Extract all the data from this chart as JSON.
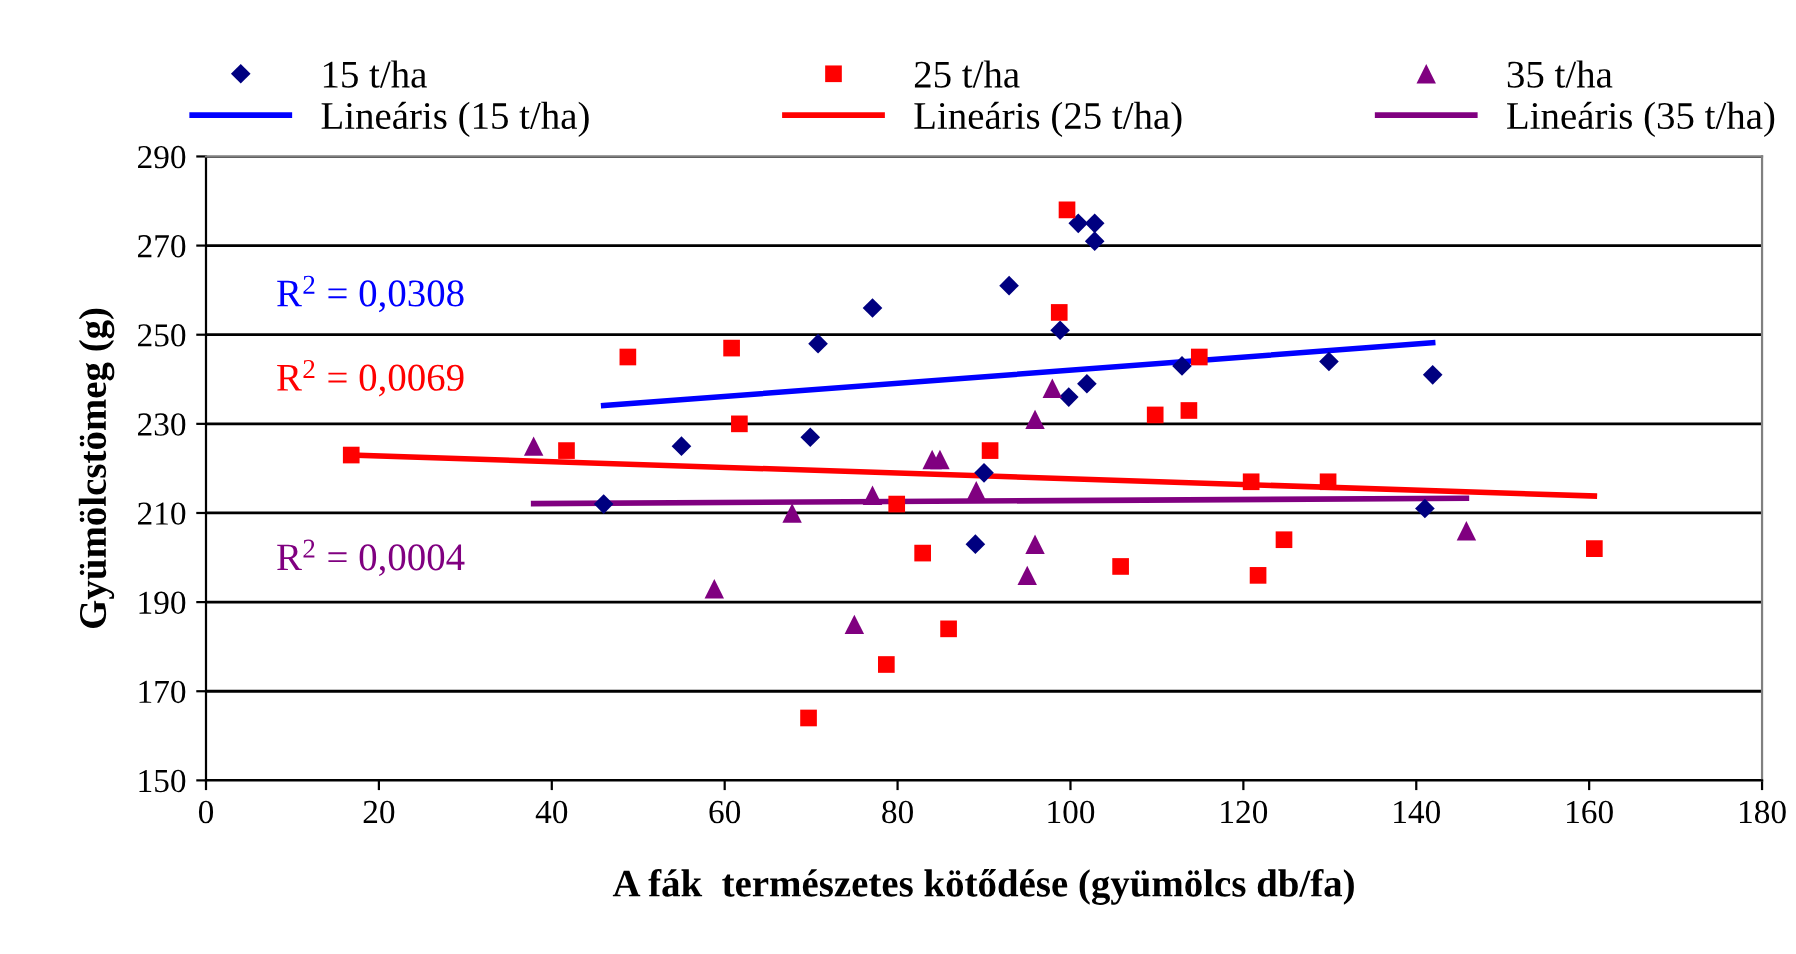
{
  "chart_data": {
    "type": "scatter",
    "xlabel": "A fák  természetes kötődése (gyümölcs db/fa)",
    "ylabel": "Gyümölcstömeg (g)",
    "xlim": [
      0,
      180
    ],
    "xticks": [
      0,
      20,
      40,
      60,
      80,
      100,
      120,
      140,
      160,
      180
    ],
    "ylim": [
      150,
      290
    ],
    "yticks": [
      150,
      170,
      190,
      210,
      230,
      250,
      270,
      290
    ],
    "grid": "y",
    "legend": "top",
    "series": [
      {
        "name": "15 t/ha",
        "marker": "diamond",
        "color": "#000080",
        "x": [
          46.0,
          55.0,
          69.9,
          70.8,
          77.1,
          89.0,
          90.0,
          92.9,
          98.8,
          99.8,
          100.9,
          101.9,
          102.8,
          102.8,
          112.9,
          129.9,
          141.0,
          141.9
        ],
        "values": [
          212,
          225,
          227,
          248,
          256,
          203,
          219,
          261,
          251,
          236,
          275,
          239,
          275,
          271,
          243,
          244,
          211,
          241
        ]
      },
      {
        "name": "25 t/ha",
        "marker": "square",
        "color": "#ff0000",
        "x": [
          16.8,
          41.7,
          48.8,
          60.8,
          61.7,
          69.7,
          78.7,
          79.9,
          82.9,
          85.9,
          90.7,
          98.7,
          99.6,
          105.8,
          109.8,
          113.7,
          114.9,
          120.9,
          121.7,
          124.7,
          129.8,
          160.6
        ],
        "values": [
          223,
          224,
          245,
          247,
          230,
          164,
          176,
          212,
          201,
          184,
          224,
          255,
          278,
          198,
          232,
          233,
          245,
          217,
          196,
          204,
          217,
          202
        ]
      },
      {
        "name": "35 t/ha",
        "marker": "triangle",
        "color": "#800080",
        "x": [
          37.9,
          58.8,
          67.8,
          75.0,
          77.1,
          84.0,
          84.9,
          89.1,
          95.0,
          95.9,
          95.9,
          97.9,
          145.8
        ],
        "values": [
          225,
          193,
          210,
          185,
          214,
          222,
          222,
          215,
          196,
          203,
          231,
          238,
          206
        ]
      },
      {
        "name": "Lineáris (15 t/ha)",
        "type": "line",
        "marker": "none",
        "color": "#0000ff",
        "x": [
          46.0,
          141.9
        ],
        "values": [
          234.1,
          248.2
        ]
      },
      {
        "name": "Lineáris (25 t/ha)",
        "type": "line",
        "marker": "none",
        "color": "#ff0000",
        "x": [
          16.8,
          160.6
        ],
        "values": [
          223.0,
          213.8
        ]
      },
      {
        "name": "Lineáris (35 t/ha)",
        "type": "line",
        "marker": "none",
        "color": "#800080",
        "x": [
          37.9,
          145.8
        ],
        "values": [
          212.1,
          213.3
        ]
      }
    ],
    "annotations": [
      "R$^{2}$ = 0,0308",
      "R$^{2}$ = 0,0069",
      "R$^{2}$ = 0,0004"
    ]
  }
}
